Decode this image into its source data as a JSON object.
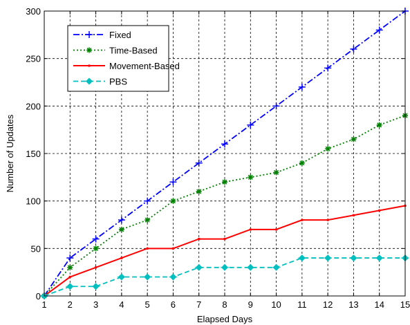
{
  "chart_data": {
    "type": "line",
    "xlabel": "Elapsed Days",
    "ylabel": "Number of Updates",
    "xlim": [
      1,
      15
    ],
    "ylim": [
      0,
      300
    ],
    "x_ticks": [
      1,
      2,
      3,
      4,
      5,
      6,
      7,
      8,
      9,
      10,
      11,
      12,
      13,
      14,
      15
    ],
    "y_ticks": [
      0,
      50,
      100,
      150,
      200,
      250,
      300
    ],
    "grid": true,
    "grid_style": "dashed",
    "legend_position": "top-left",
    "x": [
      1,
      2,
      3,
      4,
      5,
      6,
      7,
      8,
      9,
      10,
      11,
      12,
      13,
      14,
      15
    ],
    "series": [
      {
        "name": "Fixed",
        "color": "#0000ff",
        "line_style": "dash-dot",
        "marker": "plus",
        "values": [
          0,
          40,
          60,
          80,
          100,
          120,
          140,
          160,
          180,
          200,
          220,
          240,
          260,
          280,
          300
        ]
      },
      {
        "name": "Time-Based",
        "color": "#008000",
        "line_style": "dotted",
        "marker": "star",
        "values": [
          0,
          30,
          50,
          70,
          80,
          100,
          110,
          120,
          125,
          130,
          140,
          155,
          165,
          180,
          190
        ]
      },
      {
        "name": "Movement-Based",
        "color": "#ff0000",
        "line_style": "solid",
        "marker": "point",
        "values": [
          0,
          20,
          30,
          40,
          50,
          50,
          60,
          60,
          70,
          70,
          80,
          80,
          85,
          90,
          95
        ]
      },
      {
        "name": "PBS",
        "color": "#00bfbf",
        "line_style": "dashed",
        "marker": "diamond-star",
        "values": [
          0,
          10,
          10,
          20,
          20,
          20,
          30,
          30,
          30,
          30,
          40,
          40,
          40,
          40,
          40
        ]
      }
    ]
  }
}
